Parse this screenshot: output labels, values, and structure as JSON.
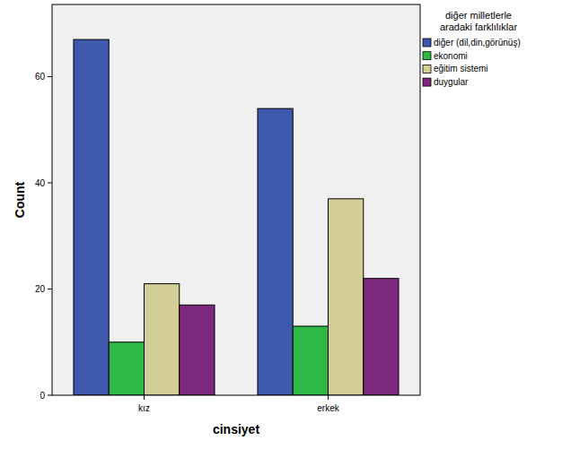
{
  "chart_data": {
    "type": "bar",
    "x_label": "cinsiyet",
    "y_label": "Count",
    "legend_title": [
      "diğer milletlerle",
      "aradaki farklılıklar"
    ],
    "categories": [
      "kız",
      "erkek"
    ],
    "series": [
      {
        "name": "diğer (dil,din,görünüş)",
        "color": "#3e58ac",
        "values": [
          67,
          54
        ]
      },
      {
        "name": "ekonomi",
        "color": "#2eb848",
        "values": [
          10,
          13
        ]
      },
      {
        "name": "eğitim sistemi",
        "color": "#d3ce97",
        "values": [
          21,
          37
        ]
      },
      {
        "name": "duygular",
        "color": "#7c287d",
        "values": [
          17,
          22
        ]
      }
    ],
    "ylim": [
      0,
      73.6
    ],
    "yticks": [
      0,
      20,
      40,
      60
    ],
    "grid": false,
    "legend": "right",
    "data_labels": false
  }
}
